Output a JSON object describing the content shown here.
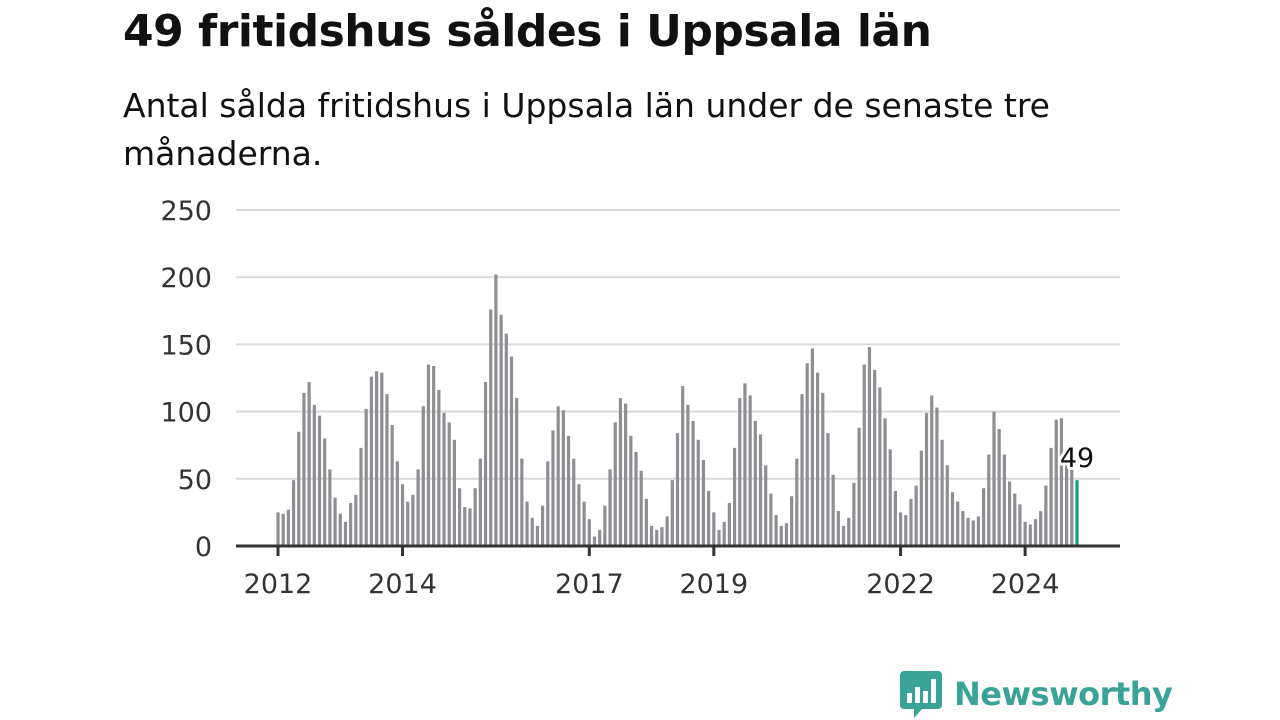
{
  "header": {
    "title": "49 fritidshus såldes i Uppsala län",
    "subtitle": "Antal sålda fritidshus i Uppsala län under de senaste tre månaderna."
  },
  "brand": {
    "name": "Newsworthy",
    "color": "#3aa397"
  },
  "chart_data": {
    "type": "bar",
    "title": "49 fritidshus såldes i Uppsala län",
    "subtitle": "Antal sålda fritidshus i Uppsala län under de senaste tre månaderna.",
    "xlabel": "",
    "ylabel": "",
    "ylim": [
      0,
      250
    ],
    "yticks": [
      0,
      50,
      100,
      150,
      200,
      250
    ],
    "grid": true,
    "legend": "none",
    "bar_color": "#8f8f93",
    "highlight_color": "#1a9a8c",
    "start": "2012-01",
    "x_ticks": [
      {
        "label": "2012",
        "date": "2012-01"
      },
      {
        "label": "2014",
        "date": "2014-01"
      },
      {
        "label": "2017",
        "date": "2017-01"
      },
      {
        "label": "2019",
        "date": "2019-01"
      },
      {
        "label": "2022",
        "date": "2022-01"
      },
      {
        "label": "2024",
        "date": "2024-01"
      }
    ],
    "values": [
      25,
      24,
      27,
      49,
      85,
      114,
      122,
      105,
      97,
      80,
      57,
      36,
      24,
      18,
      32,
      38,
      73,
      102,
      126,
      130,
      129,
      113,
      90,
      63,
      46,
      33,
      38,
      57,
      104,
      135,
      134,
      116,
      99,
      92,
      79,
      43,
      29,
      28,
      43,
      65,
      122,
      176,
      202,
      172,
      158,
      141,
      110,
      65,
      33,
      21,
      15,
      30,
      63,
      86,
      104,
      101,
      82,
      65,
      46,
      33,
      20,
      7,
      12,
      30,
      57,
      92,
      110,
      106,
      82,
      70,
      56,
      35,
      15,
      12,
      14,
      22,
      49,
      84,
      119,
      105,
      93,
      79,
      64,
      41,
      25,
      12,
      18,
      32,
      73,
      110,
      121,
      112,
      93,
      83,
      60,
      39,
      23,
      15,
      17,
      37,
      65,
      113,
      136,
      147,
      129,
      114,
      84,
      53,
      26,
      15,
      21,
      47,
      88,
      135,
      148,
      131,
      118,
      95,
      72,
      41,
      25,
      23,
      35,
      45,
      71,
      99,
      112,
      103,
      79,
      60,
      40,
      33,
      26,
      21,
      19,
      22,
      43,
      68,
      100,
      87,
      68,
      48,
      39,
      31,
      18,
      16,
      20,
      26,
      45,
      73,
      94,
      95,
      66,
      58,
      49
    ],
    "last_value_label": "49"
  }
}
